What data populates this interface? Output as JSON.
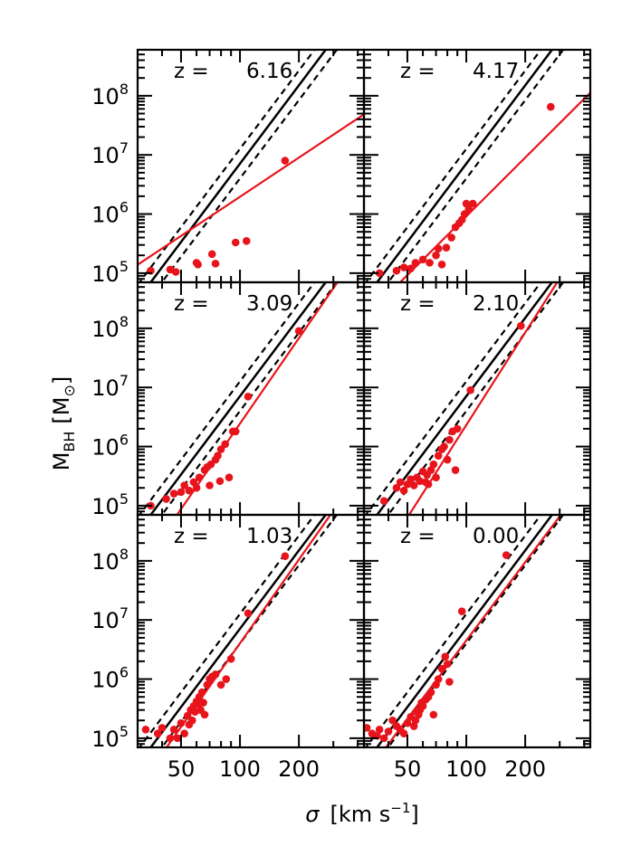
{
  "figure": {
    "ylabel_main": "M",
    "ylabel_sub": "BH",
    "ylabel_unit_open": "[M",
    "ylabel_unit_sub": "⊙",
    "ylabel_unit_close": "]",
    "xlabel_sym": "σ",
    "xlabel_unit": "[km s",
    "xlabel_exp": "−1",
    "xlabel_close": "]"
  },
  "chart_data": {
    "type": "scatter",
    "layout": "3x2 panel grid",
    "x_scale": "log",
    "y_scale": "log",
    "xlim": [
      30,
      430
    ],
    "ylim": [
      70000,
      600000000
    ],
    "x_ticks": [
      50,
      100,
      200
    ],
    "y_tick_mantissa": "10",
    "y_ticks": [
      {
        "value": 100000,
        "exp": "5"
      },
      {
        "value": 1000000,
        "exp": "6"
      },
      {
        "value": 10000000,
        "exp": "7"
      },
      {
        "value": 100000000,
        "exp": "8"
      }
    ],
    "series_colors": {
      "points": "#e8141c",
      "fit": "#e8141c",
      "reference": "#000000"
    },
    "reference_relation": {
      "slope": 4.4,
      "norm_at_200": 150000000,
      "scatter_dex": 0.25,
      "style": "solid black with dashed ±scatter"
    },
    "panels": [
      {
        "z_prefix": "z =",
        "z_value": "6.16",
        "fit": {
          "slope": 2.2,
          "norm_at_200": 9000000
        },
        "points": [
          [
            35,
            110000
          ],
          [
            44,
            115000
          ],
          [
            47,
            105000
          ],
          [
            60,
            150000
          ],
          [
            61,
            140000
          ],
          [
            72,
            210000
          ],
          [
            75,
            145000
          ],
          [
            95,
            330000
          ],
          [
            108,
            350000
          ],
          [
            170,
            8000000
          ]
        ]
      },
      {
        "z_prefix": "z =",
        "z_value": "4.17",
        "fit": {
          "slope": 3.3,
          "norm_at_200": 9000000
        },
        "points": [
          [
            36,
            100000
          ],
          [
            44,
            110000
          ],
          [
            48,
            125000
          ],
          [
            52,
            120000
          ],
          [
            55,
            150000
          ],
          [
            60,
            170000
          ],
          [
            65,
            150000
          ],
          [
            70,
            200000
          ],
          [
            72,
            260000
          ],
          [
            75,
            140000
          ],
          [
            79,
            270000
          ],
          [
            84,
            400000
          ],
          [
            88,
            600000
          ],
          [
            92,
            700000
          ],
          [
            95,
            800000
          ],
          [
            98,
            1000000
          ],
          [
            100,
            1500000
          ],
          [
            103,
            1200000
          ],
          [
            108,
            1500000
          ],
          [
            270,
            65000000
          ]
        ]
      },
      {
        "z_prefix": "z =",
        "z_value": "3.09",
        "fit": {
          "slope": 4.8,
          "norm_at_200": 68000000
        },
        "points": [
          [
            35,
            100000
          ],
          [
            42,
            130000
          ],
          [
            46,
            160000
          ],
          [
            50,
            170000
          ],
          [
            52,
            220000
          ],
          [
            55,
            180000
          ],
          [
            58,
            250000
          ],
          [
            60,
            200000
          ],
          [
            62,
            300000
          ],
          [
            66,
            400000
          ],
          [
            68,
            450000
          ],
          [
            70,
            220000
          ],
          [
            71,
            500000
          ],
          [
            75,
            600000
          ],
          [
            77,
            700000
          ],
          [
            79,
            260000
          ],
          [
            80,
            900000
          ],
          [
            84,
            1100000
          ],
          [
            88,
            300000
          ],
          [
            92,
            1800000
          ],
          [
            95,
            1800000
          ],
          [
            110,
            7000000
          ],
          [
            200,
            90000000
          ]
        ]
      },
      {
        "z_prefix": "z =",
        "z_value": "2.10",
        "fit": {
          "slope": 5.2,
          "norm_at_200": 85000000
        },
        "points": [
          [
            38,
            120000
          ],
          [
            44,
            200000
          ],
          [
            46,
            250000
          ],
          [
            48,
            180000
          ],
          [
            50,
            230000
          ],
          [
            52,
            280000
          ],
          [
            54,
            220000
          ],
          [
            56,
            300000
          ],
          [
            58,
            260000
          ],
          [
            60,
            380000
          ],
          [
            62,
            250000
          ],
          [
            63,
            330000
          ],
          [
            64,
            230000
          ],
          [
            66,
            400000
          ],
          [
            68,
            500000
          ],
          [
            70,
            300000
          ],
          [
            72,
            700000
          ],
          [
            75,
            900000
          ],
          [
            77,
            1000000
          ],
          [
            80,
            600000
          ],
          [
            82,
            1300000
          ],
          [
            85,
            1800000
          ],
          [
            88,
            400000
          ],
          [
            90,
            2000000
          ],
          [
            105,
            9000000
          ],
          [
            190,
            110000000
          ]
        ]
      },
      {
        "z_prefix": "z =",
        "z_value": "1.03",
        "fit": {
          "slope": 4.7,
          "norm_at_200": 105000000
        },
        "points": [
          [
            33,
            140000
          ],
          [
            38,
            120000
          ],
          [
            40,
            150000
          ],
          [
            44,
            100000
          ],
          [
            46,
            140000
          ],
          [
            48,
            100000
          ],
          [
            50,
            180000
          ],
          [
            52,
            120000
          ],
          [
            54,
            240000
          ],
          [
            55,
            170000
          ],
          [
            56,
            300000
          ],
          [
            57,
            200000
          ],
          [
            58,
            350000
          ],
          [
            59,
            280000
          ],
          [
            60,
            420000
          ],
          [
            61,
            380000
          ],
          [
            62,
            500000
          ],
          [
            63,
            300000
          ],
          [
            64,
            600000
          ],
          [
            65,
            400000
          ],
          [
            66,
            250000
          ],
          [
            68,
            800000
          ],
          [
            70,
            1000000
          ],
          [
            72,
            1100000
          ],
          [
            75,
            1200000
          ],
          [
            80,
            800000
          ],
          [
            85,
            1000000
          ],
          [
            90,
            2200000
          ],
          [
            110,
            13000000
          ],
          [
            170,
            120000000
          ]
        ]
      },
      {
        "z_prefix": "z =",
        "z_value": "0.00",
        "fit": {
          "slope": 4.4,
          "norm_at_200": 95000000
        },
        "points": [
          [
            31,
            150000
          ],
          [
            33,
            120000
          ],
          [
            35,
            110000
          ],
          [
            36,
            140000
          ],
          [
            38,
            100000
          ],
          [
            40,
            130000
          ],
          [
            42,
            200000
          ],
          [
            44,
            160000
          ],
          [
            46,
            140000
          ],
          [
            48,
            120000
          ],
          [
            50,
            180000
          ],
          [
            52,
            230000
          ],
          [
            54,
            160000
          ],
          [
            55,
            200000
          ],
          [
            56,
            280000
          ],
          [
            57,
            250000
          ],
          [
            58,
            300000
          ],
          [
            59,
            400000
          ],
          [
            60,
            350000
          ],
          [
            62,
            450000
          ],
          [
            64,
            500000
          ],
          [
            66,
            600000
          ],
          [
            68,
            250000
          ],
          [
            70,
            800000
          ],
          [
            72,
            1000000
          ],
          [
            75,
            1500000
          ],
          [
            78,
            2400000
          ],
          [
            80,
            1800000
          ],
          [
            82,
            900000
          ],
          [
            95,
            14000000
          ],
          [
            160,
            125000000
          ]
        ]
      }
    ]
  }
}
